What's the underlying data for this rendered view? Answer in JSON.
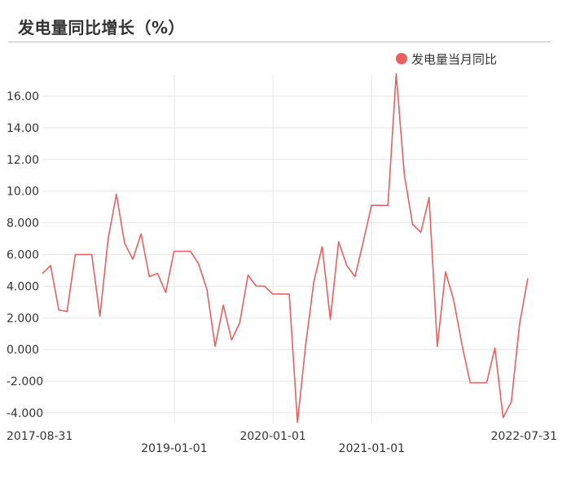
{
  "header": {
    "title": "发电量同比增长（%）"
  },
  "legend": {
    "label": "发电量当月同比",
    "color": "#e8605f"
  },
  "chart_data": {
    "type": "line",
    "title": "发电量同比增长（%）",
    "xlabel": "",
    "ylabel": "",
    "ylim": [
      -4.6,
      17.4
    ],
    "y_ticks": [
      16,
      14,
      12,
      10,
      8,
      6,
      4,
      2,
      0,
      -2,
      -4
    ],
    "y_tick_labels": [
      "16.00",
      "14.00",
      "12.00",
      "10.00",
      "8.000",
      "6.000",
      "4.000",
      "2.000",
      "0.000",
      "-2.000",
      "-4.000"
    ],
    "x_tick_labels": [
      "2017-08-31",
      "2019-01-01",
      "2020-01-01",
      "2021-01-01",
      "2022-07-31"
    ],
    "grid": true,
    "legend_position": "top-right",
    "series": [
      {
        "name": "发电量当月同比",
        "color": "#e8605f",
        "x": [
          "2017-08-31",
          "2017-09-30",
          "2017-10-31",
          "2017-11-30",
          "2017-12-31",
          "2018-01-31",
          "2018-02-28",
          "2018-03-31",
          "2018-04-30",
          "2018-05-31",
          "2018-06-30",
          "2018-07-31",
          "2018-08-31",
          "2018-09-30",
          "2018-10-31",
          "2018-11-30",
          "2018-12-31",
          "2019-01-31",
          "2019-02-28",
          "2019-03-31",
          "2019-04-30",
          "2019-05-31",
          "2019-06-30",
          "2019-07-31",
          "2019-08-31",
          "2019-09-30",
          "2019-10-31",
          "2019-11-30",
          "2019-12-31",
          "2020-01-31",
          "2020-02-29",
          "2020-03-31",
          "2020-04-30",
          "2020-05-31",
          "2020-06-30",
          "2020-07-31",
          "2020-08-31",
          "2020-09-30",
          "2020-10-31",
          "2020-11-30",
          "2020-12-31",
          "2021-01-31",
          "2021-02-28",
          "2021-03-31",
          "2021-04-30",
          "2021-05-31",
          "2021-06-30",
          "2021-07-31",
          "2021-08-31",
          "2021-09-30",
          "2021-10-31",
          "2021-11-30",
          "2021-12-31",
          "2022-01-31",
          "2022-02-28",
          "2022-03-31",
          "2022-04-30",
          "2022-05-31",
          "2022-06-30",
          "2022-07-31"
        ],
        "values": [
          4.8,
          5.3,
          2.5,
          2.4,
          6.0,
          6.0,
          6.0,
          2.1,
          7.0,
          9.8,
          6.7,
          5.7,
          7.3,
          4.6,
          4.8,
          3.6,
          6.2,
          6.2,
          6.2,
          5.4,
          3.8,
          0.2,
          2.8,
          0.6,
          1.7,
          4.7,
          4.0,
          4.0,
          3.5,
          3.5,
          3.5,
          -4.6,
          0.3,
          4.3,
          6.5,
          1.9,
          6.8,
          5.3,
          4.6,
          6.8,
          9.1,
          9.1,
          9.1,
          17.4,
          11.0,
          7.9,
          7.4,
          9.6,
          0.2,
          4.9,
          3.1,
          0.3,
          -2.1,
          -2.1,
          -2.1,
          0.1,
          -4.3,
          -3.3,
          1.6,
          4.5
        ]
      }
    ]
  }
}
